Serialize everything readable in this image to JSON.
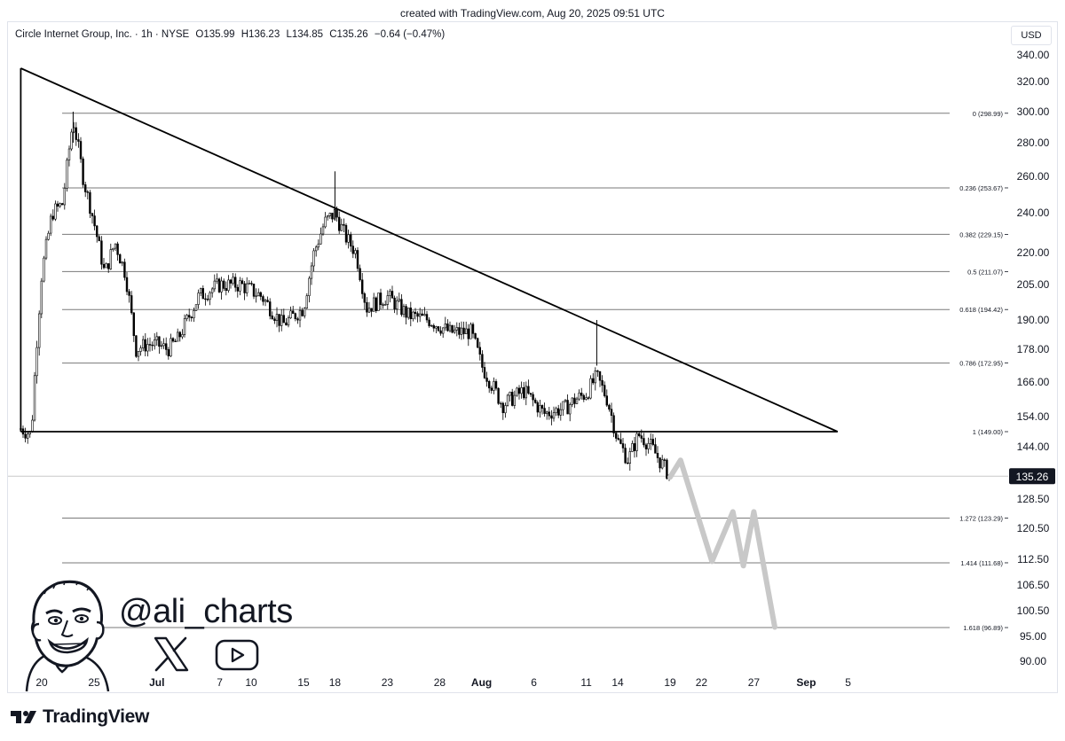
{
  "header": {
    "created": "created with TradingView.com, Aug 20, 2025 09:51 UTC"
  },
  "legend": {
    "symbol": "Circle Internet Group, Inc. · 1h · NYSE",
    "open": "O135.99",
    "high": "H136.23",
    "low": "L134.85",
    "close": "C135.26",
    "change": "−0.64 (−0.47%)"
  },
  "currency": "USD",
  "price_label": "135.26",
  "watermark": {
    "handle": "@ali_charts",
    "brand": "TradingView"
  },
  "colors": {
    "up": "#000000",
    "down": "#000000",
    "projection": "#c8c8c8",
    "line": "#000000"
  },
  "chart_data": {
    "type": "candlestick",
    "symbol": "Circle Internet Group, Inc.",
    "interval": "1h",
    "exchange": "NYSE",
    "y_ticks": [
      340,
      320,
      300,
      280,
      260,
      240,
      220,
      205,
      190,
      178,
      166,
      154,
      144,
      128.5,
      120.5,
      112.5,
      106.5,
      100.5,
      95,
      90
    ],
    "x_ticks": [
      "20",
      "25",
      "Jul",
      "7",
      "10",
      "15",
      "18",
      "23",
      "28",
      "Aug",
      "6",
      "11",
      "14",
      "19",
      "22",
      "27",
      "Sep",
      "5"
    ],
    "last_price": 135.26,
    "fib_levels": [
      {
        "ratio": "0",
        "price": 298.99,
        "label": "0 (298.99)"
      },
      {
        "ratio": "0.236",
        "price": 253.67,
        "label": "0.236 (253.67)"
      },
      {
        "ratio": "0.382",
        "price": 229.15,
        "label": "0.382 (229.15)"
      },
      {
        "ratio": "0.5",
        "price": 211.07,
        "label": "0.5 (211.07)"
      },
      {
        "ratio": "0.618",
        "price": 194.42,
        "label": "0.618 (194.42)"
      },
      {
        "ratio": "0.786",
        "price": 172.95,
        "label": "0.786 (172.95)"
      },
      {
        "ratio": "1",
        "price": 149.0,
        "label": "1 (149.00)"
      },
      {
        "ratio": "1.272",
        "price": 123.29,
        "label": "1.272 (123.29)"
      },
      {
        "ratio": "1.414",
        "price": 111.68,
        "label": "1.414 (111.68)"
      },
      {
        "ratio": "1.618",
        "price": 96.89,
        "label": "1.618 (96.89)"
      }
    ],
    "trendlines": [
      {
        "name": "descending resistance",
        "from": {
          "x": "Jun 18",
          "y": 330
        },
        "to": {
          "x": "Sep 4",
          "y": 149
        }
      },
      {
        "name": "horizontal support",
        "from": {
          "x": "Jun 18",
          "y": 149
        },
        "to": {
          "x": "Sep 4",
          "y": 149
        }
      }
    ],
    "close_path": [
      {
        "x": "Jun 18",
        "y": 150
      },
      {
        "x": "Jun 19",
        "y": 148
      },
      {
        "x": "Jun 20",
        "y": 210
      },
      {
        "x": "Jun 21",
        "y": 240
      },
      {
        "x": "Jun 22",
        "y": 245
      },
      {
        "x": "Jun 23",
        "y": 295
      },
      {
        "x": "Jun 24",
        "y": 258
      },
      {
        "x": "Jun 25",
        "y": 235
      },
      {
        "x": "Jun 26",
        "y": 210
      },
      {
        "x": "Jun 27",
        "y": 225
      },
      {
        "x": "Jun 28",
        "y": 210
      },
      {
        "x": "Jun 29",
        "y": 178
      },
      {
        "x": "Jun 30",
        "y": 180
      },
      {
        "x": "Jul 1",
        "y": 180
      },
      {
        "x": "Jul 2",
        "y": 178
      },
      {
        "x": "Jul 3",
        "y": 182
      },
      {
        "x": "Jul 5",
        "y": 200
      },
      {
        "x": "Jul 7",
        "y": 205
      },
      {
        "x": "Jul 9",
        "y": 205
      },
      {
        "x": "Jul 11",
        "y": 200
      },
      {
        "x": "Jul 13",
        "y": 188
      },
      {
        "x": "Jul 15",
        "y": 195
      },
      {
        "x": "Jul 16",
        "y": 220
      },
      {
        "x": "Jul 17",
        "y": 235
      },
      {
        "x": "Jul 18",
        "y": 240
      },
      {
        "x": "Jul 19",
        "y": 228
      },
      {
        "x": "Jul 20",
        "y": 220
      },
      {
        "x": "Jul 21",
        "y": 195
      },
      {
        "x": "Jul 23",
        "y": 200
      },
      {
        "x": "Jul 25",
        "y": 192
      },
      {
        "x": "Jul 27",
        "y": 190
      },
      {
        "x": "Jul 29",
        "y": 185
      },
      {
        "x": "Jul 31",
        "y": 185
      },
      {
        "x": "Aug 1",
        "y": 172
      },
      {
        "x": "Aug 3",
        "y": 158
      },
      {
        "x": "Aug 5",
        "y": 163
      },
      {
        "x": "Aug 7",
        "y": 155
      },
      {
        "x": "Aug 9",
        "y": 157
      },
      {
        "x": "Aug 10",
        "y": 160
      },
      {
        "x": "Aug 11",
        "y": 162
      },
      {
        "x": "Aug 12",
        "y": 168
      },
      {
        "x": "Aug 13",
        "y": 160
      },
      {
        "x": "Aug 14",
        "y": 146
      },
      {
        "x": "Aug 15",
        "y": 140
      },
      {
        "x": "Aug 16",
        "y": 148
      },
      {
        "x": "Aug 17",
        "y": 145
      },
      {
        "x": "Aug 18",
        "y": 140
      },
      {
        "x": "Aug 19",
        "y": 135.26
      }
    ],
    "projection": [
      {
        "x": "Aug 19",
        "y": 135
      },
      {
        "x": "Aug 20",
        "y": 140
      },
      {
        "x": "Aug 23",
        "y": 112
      },
      {
        "x": "Aug 25",
        "y": 125
      },
      {
        "x": "Aug 26",
        "y": 111
      },
      {
        "x": "Aug 27",
        "y": 125
      },
      {
        "x": "Aug 29",
        "y": 97
      }
    ]
  }
}
